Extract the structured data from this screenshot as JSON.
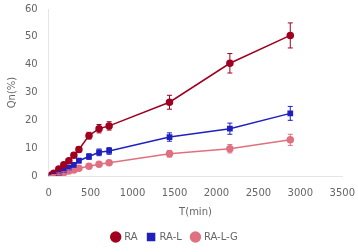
{
  "chart_data": {
    "type": "line",
    "xlabel": "T(min)",
    "ylabel": "Qn(%)",
    "x": [
      30,
      60,
      120,
      180,
      240,
      300,
      360,
      480,
      600,
      720,
      1440,
      2160,
      2880
    ],
    "series": [
      {
        "name": "RA",
        "color": "#a00020",
        "marker": "circle",
        "values": [
          0.3,
          1.0,
          2.5,
          4.0,
          5.5,
          7.5,
          9.5,
          14.5,
          17.0,
          18.0,
          26.5,
          40.5,
          50.5
        ],
        "errors": [
          0.2,
          0.3,
          0.5,
          0.6,
          0.7,
          0.8,
          1.0,
          1.2,
          1.5,
          1.5,
          2.5,
          3.5,
          4.5
        ]
      },
      {
        "name": "RA-L",
        "color": "#2020c0",
        "marker": "square",
        "values": [
          0.2,
          0.5,
          1.2,
          2.0,
          3.0,
          4.0,
          5.5,
          7.0,
          8.5,
          9.0,
          14.0,
          17.0,
          22.5
        ],
        "errors": [
          0.2,
          0.3,
          0.4,
          0.5,
          0.6,
          0.7,
          0.8,
          1.0,
          1.2,
          1.2,
          1.5,
          2.0,
          2.5
        ]
      },
      {
        "name": "RA-L-G",
        "color": "#e07080",
        "marker": "circle",
        "values": [
          0.1,
          0.3,
          0.8,
          1.2,
          1.8,
          2.2,
          2.8,
          3.5,
          4.2,
          4.8,
          8.0,
          9.8,
          13.0
        ],
        "errors": [
          0.1,
          0.2,
          0.3,
          0.3,
          0.4,
          0.4,
          0.5,
          0.6,
          0.7,
          0.8,
          1.2,
          1.5,
          2.0
        ]
      }
    ],
    "xlim": [
      0,
      3500
    ],
    "ylim": [
      0,
      60
    ],
    "xticks": [
      0,
      500,
      1000,
      1500,
      2000,
      2500,
      3000,
      3500
    ],
    "yticks": [
      0,
      10,
      20,
      30,
      40,
      50,
      60
    ],
    "grid": false,
    "legend": "bottom"
  }
}
